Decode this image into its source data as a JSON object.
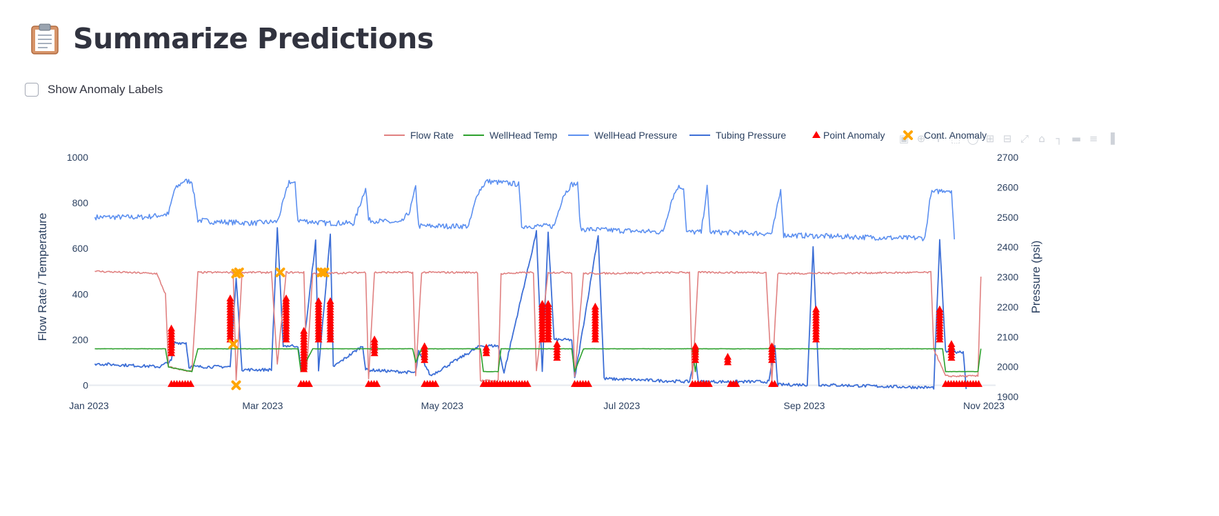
{
  "page": {
    "title": "Summarize Predictions",
    "title_icon": "clipboard-icon",
    "checkbox_label": "Show Anomaly Labels",
    "checkbox_checked": false
  },
  "modebar": {
    "icons": [
      "camera-icon",
      "zoom-icon",
      "pan-icon",
      "box-select-icon",
      "lasso-select-icon",
      "zoom-in-icon",
      "zoom-out-icon",
      "autoscale-icon",
      "reset-axes-icon",
      "spike-lines-icon",
      "hover-closest-icon",
      "hover-compare-icon",
      "plotly-logo-icon"
    ]
  },
  "colors": {
    "flow_rate": "#e08080",
    "wellhead_temp": "#2ca02c",
    "wellhead_pressure": "#5b8ff0",
    "tubing_pressure": "#3c6ed6",
    "point_anomaly": "#ff0000",
    "cont_anomaly": "#ffa500"
  },
  "chart_data": {
    "type": "line",
    "legend_position": "top-right",
    "legend": [
      "Flow Rate",
      "WellHead Temp",
      "WellHead Pressure",
      "Tubing Pressure",
      "Point Anomaly",
      "Cont. Anomaly"
    ],
    "x_range": [
      "2023-01-01",
      "2023-11-05"
    ],
    "x_ticks": [
      "Jan 2023",
      "Mar 2023",
      "May 2023",
      "Jul 2023",
      "Sep 2023",
      "Nov 2023"
    ],
    "x_tick_dates": [
      "2023-01-01",
      "2023-03-01",
      "2023-05-01",
      "2023-07-01",
      "2023-09-01",
      "2023-11-01"
    ],
    "y_left": {
      "label": "Flow Rate / Temperature",
      "range": [
        -50,
        1000
      ],
      "ticks": [
        0,
        200,
        400,
        600,
        800,
        1000
      ]
    },
    "y_right": {
      "label": "Pressure (psi)",
      "range": [
        1900,
        2700
      ],
      "ticks": [
        1900,
        2000,
        2100,
        2200,
        2300,
        2400,
        2500,
        2600,
        2700
      ]
    },
    "series": [
      {
        "name": "WellHead Pressure",
        "axis": "right",
        "points": [
          [
            "2023-01-03",
            2500
          ],
          [
            "2023-01-20",
            2500
          ],
          [
            "2023-01-28",
            2510
          ],
          [
            "2023-01-30",
            2590
          ],
          [
            "2023-02-02",
            2620
          ],
          [
            "2023-02-05",
            2620
          ],
          [
            "2023-02-07",
            2490
          ],
          [
            "2023-02-12",
            2485
          ],
          [
            "2023-02-26",
            2480
          ],
          [
            "2023-03-06",
            2485
          ],
          [
            "2023-03-08",
            2550
          ],
          [
            "2023-03-10",
            2620
          ],
          [
            "2023-03-12",
            2610
          ],
          [
            "2023-03-13",
            2490
          ],
          [
            "2023-03-22",
            2480
          ],
          [
            "2023-04-01",
            2480
          ],
          [
            "2023-04-05",
            2600
          ],
          [
            "2023-04-06",
            2490
          ],
          [
            "2023-04-17",
            2480
          ],
          [
            "2023-04-20",
            2520
          ],
          [
            "2023-04-22",
            2600
          ],
          [
            "2023-04-23",
            2470
          ],
          [
            "2023-05-10",
            2470
          ],
          [
            "2023-05-13",
            2580
          ],
          [
            "2023-05-16",
            2620
          ],
          [
            "2023-05-27",
            2610
          ],
          [
            "2023-05-28",
            2470
          ],
          [
            "2023-06-08",
            2470
          ],
          [
            "2023-06-11",
            2570
          ],
          [
            "2023-06-14",
            2610
          ],
          [
            "2023-06-16",
            2610
          ],
          [
            "2023-06-17",
            2460
          ],
          [
            "2023-07-15",
            2450
          ],
          [
            "2023-07-18",
            2560
          ],
          [
            "2023-07-20",
            2600
          ],
          [
            "2023-07-22",
            2600
          ],
          [
            "2023-07-23",
            2450
          ],
          [
            "2023-07-28",
            2450
          ],
          [
            "2023-07-30",
            2600
          ],
          [
            "2023-07-31",
            2450
          ],
          [
            "2023-08-21",
            2445
          ],
          [
            "2023-08-24",
            2590
          ],
          [
            "2023-08-25",
            2440
          ],
          [
            "2023-10-03",
            2430
          ],
          [
            "2023-10-12",
            2430
          ],
          [
            "2023-10-14",
            2580
          ],
          [
            "2023-10-18",
            2590
          ],
          [
            "2023-10-21",
            2590
          ],
          [
            "2023-10-22",
            2420
          ]
        ]
      },
      {
        "name": "Tubing Pressure",
        "axis": "right",
        "points": [
          [
            "2023-01-03",
            2010
          ],
          [
            "2023-01-25",
            2000
          ],
          [
            "2023-01-29",
            2020
          ],
          [
            "2023-01-30",
            2080
          ],
          [
            "2023-02-03",
            2080
          ],
          [
            "2023-02-04",
            2000
          ],
          [
            "2023-02-18",
            2000
          ],
          [
            "2023-02-20",
            2300
          ],
          [
            "2023-02-22",
            1990
          ],
          [
            "2023-03-04",
            1990
          ],
          [
            "2023-03-06",
            2460
          ],
          [
            "2023-03-08",
            2070
          ],
          [
            "2023-03-13",
            2070
          ],
          [
            "2023-03-14",
            1990
          ],
          [
            "2023-03-19",
            2420
          ],
          [
            "2023-03-20",
            1990
          ],
          [
            "2023-03-24",
            2440
          ],
          [
            "2023-03-25",
            2000
          ],
          [
            "2023-04-04",
            2070
          ],
          [
            "2023-04-05",
            1990
          ],
          [
            "2023-04-22",
            1980
          ],
          [
            "2023-04-23",
            2050
          ],
          [
            "2023-04-27",
            1970
          ],
          [
            "2023-05-14",
            2070
          ],
          [
            "2023-05-20",
            2070
          ],
          [
            "2023-05-22",
            1980
          ],
          [
            "2023-06-02",
            2450
          ],
          [
            "2023-06-04",
            1980
          ],
          [
            "2023-06-06",
            2450
          ],
          [
            "2023-06-08",
            2090
          ],
          [
            "2023-06-14",
            2090
          ],
          [
            "2023-06-15",
            1960
          ],
          [
            "2023-06-23",
            2440
          ],
          [
            "2023-06-25",
            1960
          ],
          [
            "2023-07-24",
            1950
          ],
          [
            "2023-07-26",
            2040
          ],
          [
            "2023-07-27",
            1950
          ],
          [
            "2023-08-20",
            1950
          ],
          [
            "2023-08-22",
            2070
          ],
          [
            "2023-08-23",
            1940
          ],
          [
            "2023-09-02",
            1940
          ],
          [
            "2023-09-04",
            2400
          ],
          [
            "2023-09-06",
            1940
          ],
          [
            "2023-10-15",
            1930
          ],
          [
            "2023-10-17",
            2420
          ],
          [
            "2023-10-19",
            2050
          ],
          [
            "2023-10-25",
            2050
          ],
          [
            "2023-10-26",
            1930
          ]
        ]
      },
      {
        "name": "Flow Rate",
        "axis": "left",
        "points": [
          [
            "2023-01-03",
            500
          ],
          [
            "2023-01-24",
            490
          ],
          [
            "2023-01-27",
            400
          ],
          [
            "2023-01-28",
            80
          ],
          [
            "2023-02-05",
            60
          ],
          [
            "2023-02-07",
            495
          ],
          [
            "2023-02-19",
            495
          ],
          [
            "2023-02-20",
            20
          ],
          [
            "2023-02-22",
            495
          ],
          [
            "2023-03-04",
            495
          ],
          [
            "2023-03-06",
            90
          ],
          [
            "2023-03-09",
            495
          ],
          [
            "2023-03-15",
            495
          ],
          [
            "2023-03-16",
            70
          ],
          [
            "2023-03-18",
            490
          ],
          [
            "2023-04-05",
            495
          ],
          [
            "2023-04-06",
            30
          ],
          [
            "2023-04-08",
            495
          ],
          [
            "2023-04-21",
            495
          ],
          [
            "2023-04-22",
            40
          ],
          [
            "2023-04-24",
            495
          ],
          [
            "2023-05-13",
            495
          ],
          [
            "2023-05-14",
            20
          ],
          [
            "2023-05-20",
            20
          ],
          [
            "2023-05-21",
            490
          ],
          [
            "2023-06-01",
            495
          ],
          [
            "2023-06-02",
            60
          ],
          [
            "2023-06-06",
            495
          ],
          [
            "2023-06-14",
            495
          ],
          [
            "2023-06-15",
            40
          ],
          [
            "2023-06-18",
            490
          ],
          [
            "2023-07-24",
            495
          ],
          [
            "2023-07-25",
            30
          ],
          [
            "2023-07-27",
            495
          ],
          [
            "2023-08-19",
            495
          ],
          [
            "2023-08-21",
            20
          ],
          [
            "2023-08-23",
            490
          ],
          [
            "2023-10-14",
            495
          ],
          [
            "2023-10-15",
            160
          ],
          [
            "2023-10-19",
            40
          ],
          [
            "2023-10-30",
            40
          ],
          [
            "2023-10-31",
            480
          ]
        ]
      },
      {
        "name": "WellHead Temp",
        "axis": "left",
        "points": [
          [
            "2023-01-03",
            160
          ],
          [
            "2023-01-27",
            160
          ],
          [
            "2023-01-28",
            80
          ],
          [
            "2023-02-05",
            60
          ],
          [
            "2023-02-07",
            160
          ],
          [
            "2023-03-13",
            160
          ],
          [
            "2023-03-14",
            60
          ],
          [
            "2023-03-18",
            160
          ],
          [
            "2023-04-21",
            160
          ],
          [
            "2023-04-22",
            100
          ],
          [
            "2023-04-24",
            160
          ],
          [
            "2023-05-14",
            160
          ],
          [
            "2023-05-15",
            60
          ],
          [
            "2023-05-20",
            60
          ],
          [
            "2023-05-21",
            160
          ],
          [
            "2023-06-14",
            160
          ],
          [
            "2023-06-15",
            60
          ],
          [
            "2023-06-18",
            160
          ],
          [
            "2023-07-25",
            160
          ],
          [
            "2023-07-26",
            60
          ],
          [
            "2023-07-27",
            160
          ],
          [
            "2023-10-18",
            160
          ],
          [
            "2023-10-19",
            60
          ],
          [
            "2023-10-30",
            60
          ],
          [
            "2023-10-31",
            160
          ]
        ]
      }
    ],
    "point_anomalies": [
      {
        "date": "2023-01-29",
        "from": 140,
        "to": 250
      },
      {
        "date": "2023-02-18",
        "from": 200,
        "to": 380
      },
      {
        "date": "2023-03-09",
        "from": 200,
        "to": 380
      },
      {
        "date": "2023-03-15",
        "from": 70,
        "to": 240
      },
      {
        "date": "2023-03-20",
        "from": 200,
        "to": 370
      },
      {
        "date": "2023-03-24",
        "from": 200,
        "to": 370
      },
      {
        "date": "2023-04-08",
        "from": 140,
        "to": 210
      },
      {
        "date": "2023-04-25",
        "from": 110,
        "to": 170
      },
      {
        "date": "2023-05-16",
        "from": 140,
        "to": 170
      },
      {
        "date": "2023-06-04",
        "from": 200,
        "to": 360
      },
      {
        "date": "2023-06-06",
        "from": 200,
        "to": 360
      },
      {
        "date": "2023-06-09",
        "from": 120,
        "to": 180
      },
      {
        "date": "2023-06-22",
        "from": 200,
        "to": 350
      },
      {
        "date": "2023-07-26",
        "from": 110,
        "to": 170
      },
      {
        "date": "2023-08-06",
        "from": 100,
        "to": 130
      },
      {
        "date": "2023-08-21",
        "from": 110,
        "to": 170
      },
      {
        "date": "2023-09-05",
        "from": 200,
        "to": 340
      },
      {
        "date": "2023-10-17",
        "from": 200,
        "to": 340
      },
      {
        "date": "2023-10-21",
        "from": 120,
        "to": 180
      }
    ],
    "point_anomaly_baseline": [
      {
        "from": "2023-01-29",
        "to": "2023-02-05",
        "value": 5
      },
      {
        "from": "2023-03-14",
        "to": "2023-03-17",
        "value": 5
      },
      {
        "from": "2023-04-06",
        "to": "2023-04-09",
        "value": 5
      },
      {
        "from": "2023-04-25",
        "to": "2023-04-29",
        "value": 5
      },
      {
        "from": "2023-05-15",
        "to": "2023-05-30",
        "value": 5
      },
      {
        "from": "2023-06-15",
        "to": "2023-06-20",
        "value": 5
      },
      {
        "from": "2023-07-25",
        "to": "2023-07-31",
        "value": 5
      },
      {
        "from": "2023-08-07",
        "to": "2023-08-09",
        "value": 5
      },
      {
        "from": "2023-08-21",
        "to": "2023-08-22",
        "value": 5
      },
      {
        "from": "2023-10-19",
        "to": "2023-10-31",
        "value": 5
      }
    ],
    "cont_anomalies": [
      {
        "date": "2023-02-20",
        "value": 490
      },
      {
        "date": "2023-02-21",
        "value": 495
      },
      {
        "date": "2023-02-19",
        "value": 180
      },
      {
        "date": "2023-02-20",
        "value": 0
      },
      {
        "date": "2023-03-07",
        "value": 495
      },
      {
        "date": "2023-03-21",
        "value": 495
      },
      {
        "date": "2023-03-22",
        "value": 495
      }
    ]
  }
}
